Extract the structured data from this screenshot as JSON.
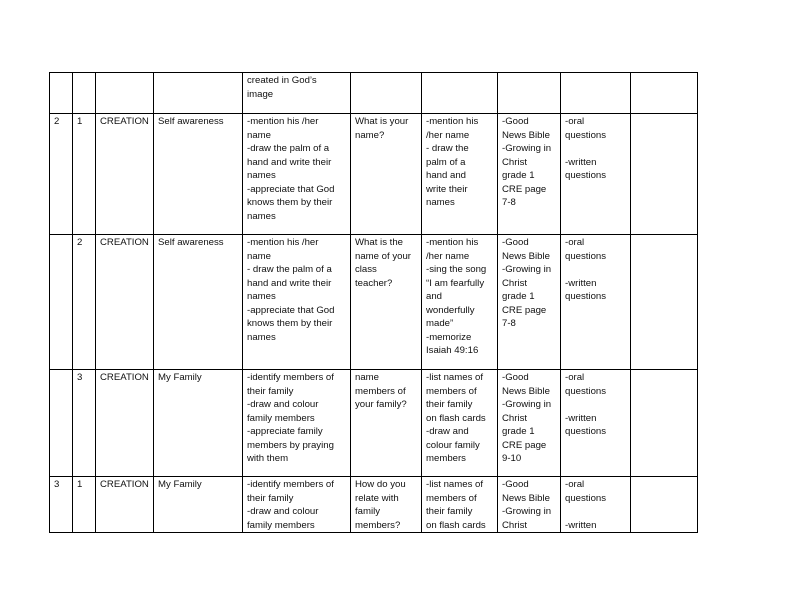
{
  "table": {
    "rows": [
      [
        "",
        "",
        "",
        "",
        "created in God’s\nimage",
        "",
        "",
        "",
        "",
        ""
      ],
      [
        "2",
        "1",
        "CREATION",
        "Self awareness",
        "-mention his /her\nname\n-draw the palm of a\nhand and write their\nnames\n-appreciate  that God\nknows them by their\nnames",
        " What is your\nname?",
        " -mention his\n/her name\n- draw the\npalm of a\nhand and\nwrite their\nnames",
        "-Good\nNews Bible\n-Growing in\nChrist\ngrade 1\nCRE  page\n7-8",
        "-oral\nquestions\n\n-written\nquestions",
        ""
      ],
      [
        "",
        "2",
        "CREATION",
        "Self awareness",
        " -mention his /her\nname\n- draw the palm of a\nhand and write their\nnames\n-appreciate  that God\nknows them by their\nnames",
        " What is the\nname of your\nclass\nteacher?",
        " -mention his\n/her name\n -sing the song\n“I am fearfully\nand\nwonderfully\nmade”\n-memorize\nIsaiah 49:16",
        "-Good\nNews Bible\n-Growing in\nChrist\ngrade 1\nCRE  page\n7-8",
        "-oral\nquestions\n\n-written\nquestions",
        ""
      ],
      [
        "",
        "3",
        "CREATION",
        "My Family",
        " -identify members of\ntheir family\n-draw and colour\nfamily members\n-appreciate family\nmembers by praying\nwith them",
        "name\nmembers of\nyour family?",
        " -list names of\nmembers of\ntheir family\non flash cards\n-draw and\ncolour family\nmembers",
        "-Good\nNews Bible\n-Growing in\nChrist\ngrade 1\nCRE  page\n9-10",
        "-oral\nquestions\n\n-written\nquestions",
        ""
      ],
      [
        "3",
        "1",
        "CREATION",
        "My Family",
        " -identify members of\ntheir family\n-draw and colour\nfamily members",
        "How do you\nrelate with\nfamily\nmembers?",
        " -list names of\nmembers of\ntheir family\non flash cards",
        "-Good\nNews Bible\n-Growing in\nChrist",
        "-oral\nquestions\n\n-written",
        ""
      ]
    ]
  }
}
